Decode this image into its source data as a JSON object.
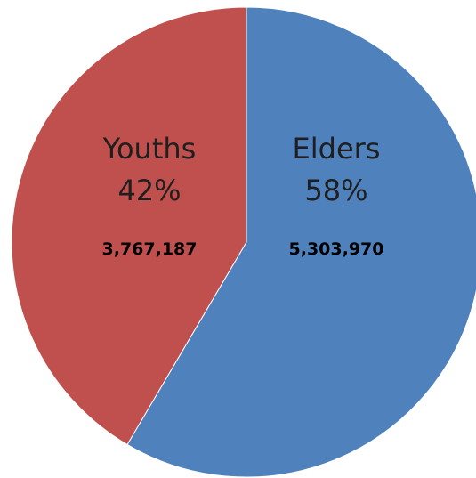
{
  "chart_data": {
    "type": "pie",
    "start": "top",
    "direction": "clockwise",
    "slices": [
      {
        "label": "Elders",
        "percent_label": "58%",
        "value_label": "5,303,970",
        "value": 5303970,
        "color": "#4F81BD"
      },
      {
        "label": "Youths",
        "percent_label": "42%",
        "value_label": "3,767,187",
        "value": 3767187,
        "color": "#C0504D"
      }
    ]
  }
}
